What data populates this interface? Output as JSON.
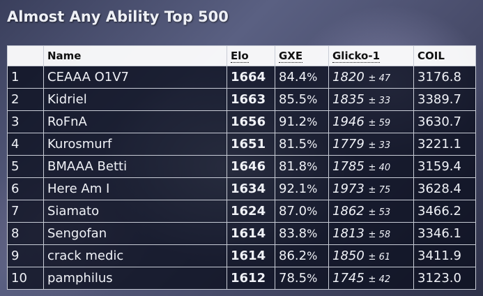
{
  "page": {
    "title": "Almost Any Ability Top 500"
  },
  "table": {
    "columns": {
      "rank": "",
      "name": "Name",
      "elo": "Elo",
      "gxe": "GXE",
      "glicko": "Glicko-1",
      "coil": "COIL"
    },
    "rows": [
      {
        "rank": "1",
        "name": "CEAAA O1V7",
        "elo": "1664",
        "gxe": "84.4",
        "gxe_unit": "%",
        "glicko": "1820",
        "glicko_dev": "± 47",
        "coil": "3176.8"
      },
      {
        "rank": "2",
        "name": "Kidriel",
        "elo": "1663",
        "gxe": "85.5",
        "gxe_unit": "%",
        "glicko": "1835",
        "glicko_dev": "± 33",
        "coil": "3389.7"
      },
      {
        "rank": "3",
        "name": "RoFnA",
        "elo": "1656",
        "gxe": "91.2",
        "gxe_unit": "%",
        "glicko": "1946",
        "glicko_dev": "± 59",
        "coil": "3630.7"
      },
      {
        "rank": "4",
        "name": "Kurosmurf",
        "elo": "1651",
        "gxe": "81.5",
        "gxe_unit": "%",
        "glicko": "1779",
        "glicko_dev": "± 33",
        "coil": "3221.1"
      },
      {
        "rank": "5",
        "name": "BMAAA Betti",
        "elo": "1646",
        "gxe": "81.8",
        "gxe_unit": "%",
        "glicko": "1785",
        "glicko_dev": "± 40",
        "coil": "3159.4"
      },
      {
        "rank": "6",
        "name": "Here Am I",
        "elo": "1634",
        "gxe": "92.1",
        "gxe_unit": "%",
        "glicko": "1973",
        "glicko_dev": "± 75",
        "coil": "3628.4"
      },
      {
        "rank": "7",
        "name": "Siamato",
        "elo": "1624",
        "gxe": "87.0",
        "gxe_unit": "%",
        "glicko": "1862",
        "glicko_dev": "± 53",
        "coil": "3466.2"
      },
      {
        "rank": "8",
        "name": "Sengofan",
        "elo": "1614",
        "gxe": "83.8",
        "gxe_unit": "%",
        "glicko": "1813",
        "glicko_dev": "± 58",
        "coil": "3346.1"
      },
      {
        "rank": "9",
        "name": "crack medic",
        "elo": "1614",
        "gxe": "86.2",
        "gxe_unit": "%",
        "glicko": "1850",
        "glicko_dev": "± 61",
        "coil": "3411.9"
      },
      {
        "rank": "10",
        "name": "pamphilus",
        "elo": "1612",
        "gxe": "78.5",
        "gxe_unit": "%",
        "glicko": "1745",
        "glicko_dev": "± 42",
        "coil": "3123.0"
      }
    ]
  }
}
